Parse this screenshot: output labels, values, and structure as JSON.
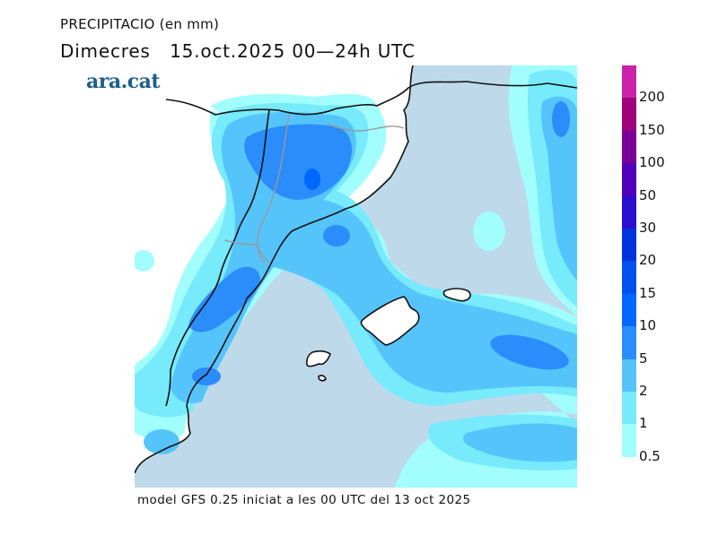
{
  "header": {
    "title": "PRECIPITACIO (en mm)",
    "subtitle": "Dimecres   15.oct.2025 00—24h UTC",
    "logo": "ara.cat"
  },
  "footer": {
    "model_note": "model GFS 0.25 iniciat a les 00 UTC del 13 oct 2025"
  },
  "map": {
    "region": "Catalonia, Valencia, Balearic Islands and western Mediterranean",
    "sea_color": "#bdd9ea",
    "land_color": "#ffffff",
    "coast_color": "#111111",
    "border_color": "#999999"
  },
  "legend": {
    "unit": "mm",
    "bands": [
      {
        "from": 200,
        "to": null,
        "color": "#cc22aa"
      },
      {
        "from": 150,
        "to": 200,
        "color": "#a0007a"
      },
      {
        "from": 100,
        "to": 150,
        "color": "#7a0099"
      },
      {
        "from": 50,
        "to": 100,
        "color": "#5000bb"
      },
      {
        "from": 30,
        "to": 50,
        "color": "#2a10cc"
      },
      {
        "from": 20,
        "to": 30,
        "color": "#0033dd"
      },
      {
        "from": 15,
        "to": 20,
        "color": "#0050f0"
      },
      {
        "from": 10,
        "to": 15,
        "color": "#0068ff"
      },
      {
        "from": 5,
        "to": 10,
        "color": "#2b8cfc"
      },
      {
        "from": 2,
        "to": 5,
        "color": "#55c4fb"
      },
      {
        "from": 1,
        "to": 2,
        "color": "#77eafc"
      },
      {
        "from": 0.5,
        "to": 1,
        "color": "#a2fdfd"
      }
    ],
    "labels": [
      "200",
      "150",
      "100",
      "50",
      "30",
      "20",
      "15",
      "10",
      "5",
      "2",
      "1",
      "0.5"
    ]
  }
}
